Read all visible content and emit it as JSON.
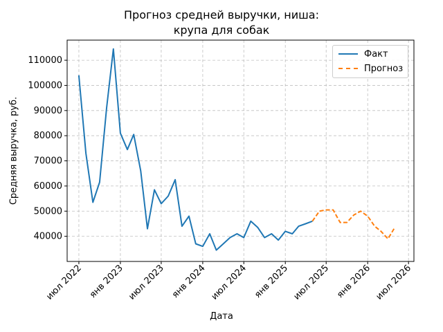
{
  "chart_data": {
    "type": "line",
    "title_line1": "Прогноз средней выручки, ниша:",
    "title_line2": "крупа для собак",
    "xlabel": "Дата",
    "ylabel": "Средняя выручка, руб.",
    "ylim": [
      30000,
      118000
    ],
    "xlim": [
      "2022-05-10",
      "2026-07-25"
    ],
    "grid": true,
    "legend_position": "top-right",
    "x_ticks": [
      {
        "date": "2022-07-01",
        "label": "июл 2022"
      },
      {
        "date": "2023-01-01",
        "label": "янв 2023"
      },
      {
        "date": "2023-07-01",
        "label": "июл 2023"
      },
      {
        "date": "2024-01-01",
        "label": "янв 2024"
      },
      {
        "date": "2024-07-01",
        "label": "июл 2024"
      },
      {
        "date": "2025-01-01",
        "label": "янв 2025"
      },
      {
        "date": "2025-07-01",
        "label": "июл 2025"
      },
      {
        "date": "2026-01-01",
        "label": "янв 2026"
      },
      {
        "date": "2026-07-01",
        "label": "июл 2026"
      }
    ],
    "y_ticks": [
      {
        "value": 40000,
        "label": "40000"
      },
      {
        "value": 50000,
        "label": "50000"
      },
      {
        "value": 60000,
        "label": "60000"
      },
      {
        "value": 70000,
        "label": "70000"
      },
      {
        "value": 80000,
        "label": "80000"
      },
      {
        "value": 90000,
        "label": "90000"
      },
      {
        "value": 100000,
        "label": "100000"
      },
      {
        "value": 110000,
        "label": "110000"
      }
    ],
    "series": [
      {
        "name": "Факт",
        "color": "#1f77b4",
        "style": "solid",
        "points": [
          [
            "2022-07-01",
            104000
          ],
          [
            "2022-08-01",
            73000
          ],
          [
            "2022-09-01",
            53500
          ],
          [
            "2022-10-01",
            61500
          ],
          [
            "2022-11-01",
            91000
          ],
          [
            "2022-12-01",
            114500
          ],
          [
            "2023-01-01",
            81000
          ],
          [
            "2023-02-01",
            74500
          ],
          [
            "2023-03-01",
            80500
          ],
          [
            "2023-04-01",
            66000
          ],
          [
            "2023-05-01",
            43000
          ],
          [
            "2023-06-01",
            58500
          ],
          [
            "2023-07-01",
            53000
          ],
          [
            "2023-08-01",
            56000
          ],
          [
            "2023-09-01",
            62500
          ],
          [
            "2023-10-01",
            44000
          ],
          [
            "2023-11-01",
            48000
          ],
          [
            "2023-12-01",
            37000
          ],
          [
            "2024-01-01",
            36000
          ],
          [
            "2024-02-01",
            41000
          ],
          [
            "2024-03-01",
            34500
          ],
          [
            "2024-04-01",
            37000
          ],
          [
            "2024-05-01",
            39500
          ],
          [
            "2024-06-01",
            41000
          ],
          [
            "2024-07-01",
            39500
          ],
          [
            "2024-08-01",
            46000
          ],
          [
            "2024-09-01",
            43500
          ],
          [
            "2024-10-01",
            39500
          ],
          [
            "2024-11-01",
            41000
          ],
          [
            "2024-12-01",
            38500
          ],
          [
            "2025-01-01",
            42000
          ],
          [
            "2025-02-01",
            41000
          ],
          [
            "2025-03-01",
            44000
          ],
          [
            "2025-04-01",
            45000
          ],
          [
            "2025-05-01",
            46000
          ]
        ]
      },
      {
        "name": "Прогноз",
        "color": "#ff7f0e",
        "style": "dashed",
        "points": [
          [
            "2025-05-01",
            46000
          ],
          [
            "2025-06-01",
            50000
          ],
          [
            "2025-07-01",
            50500
          ],
          [
            "2025-08-01",
            50500
          ],
          [
            "2025-09-01",
            45500
          ],
          [
            "2025-10-01",
            45500
          ],
          [
            "2025-11-01",
            48500
          ],
          [
            "2025-12-01",
            50000
          ],
          [
            "2026-01-01",
            48000
          ],
          [
            "2026-02-01",
            44000
          ],
          [
            "2026-03-01",
            42000
          ],
          [
            "2026-04-01",
            39000
          ],
          [
            "2026-05-01",
            43500
          ]
        ]
      }
    ]
  }
}
